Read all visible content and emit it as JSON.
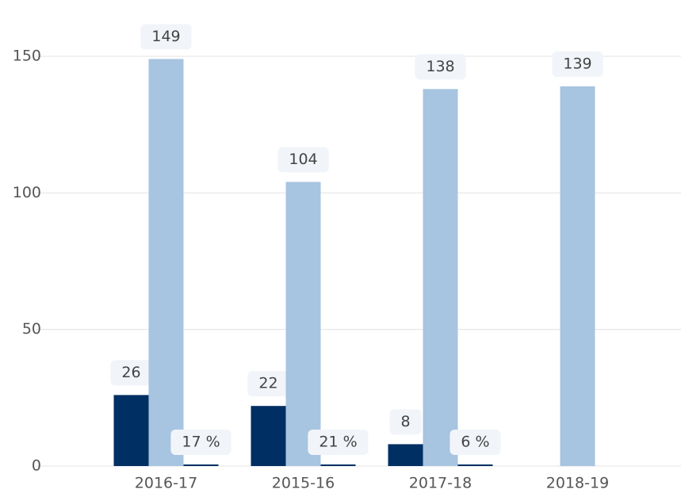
{
  "chart_data": {
    "type": "bar",
    "categories": [
      "2016-17",
      "2015-16",
      "2017-18",
      "2018-19"
    ],
    "series": [
      {
        "color": "#002f63",
        "values": [
          26,
          22,
          8,
          null
        ]
      },
      {
        "color": "#a7c4e0",
        "values": [
          149,
          104,
          138,
          139
        ]
      },
      {
        "color": "#002f63",
        "values": [
          0.17,
          0.21,
          0.06,
          null
        ],
        "value_labels": [
          "17 %",
          "21 %",
          "6 %",
          null
        ]
      }
    ],
    "ylim": [
      0,
      150
    ],
    "yticks": [
      0,
      50,
      100,
      150
    ],
    "grid": true
  }
}
